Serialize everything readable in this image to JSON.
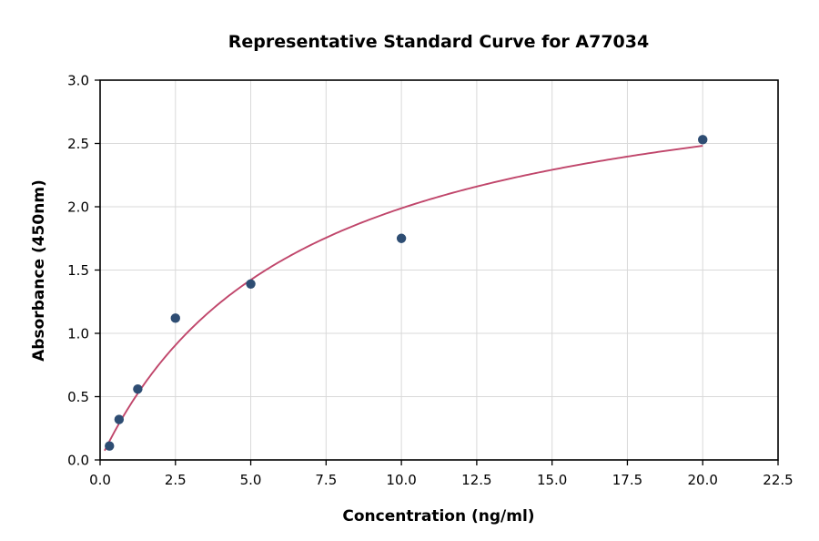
{
  "chart_data": {
    "type": "scatter",
    "title": "Representative Standard Curve for A77034",
    "xlabel": "Concentration (ng/ml)",
    "ylabel": "Absorbance (450nm)",
    "xlim": [
      0,
      22.5
    ],
    "ylim": [
      0,
      3.0
    ],
    "x_ticks": [
      0,
      2.5,
      5,
      7.5,
      10,
      12.5,
      15,
      17.5,
      20,
      22.5
    ],
    "y_ticks": [
      0,
      0.5,
      1,
      1.5,
      2,
      2.5,
      3
    ],
    "grid": true,
    "legend": "none",
    "points": [
      {
        "x": 0.31,
        "y": 0.11
      },
      {
        "x": 0.63,
        "y": 0.32
      },
      {
        "x": 1.25,
        "y": 0.56
      },
      {
        "x": 2.5,
        "y": 1.12
      },
      {
        "x": 5,
        "y": 1.39
      },
      {
        "x": 10,
        "y": 1.75
      },
      {
        "x": 20,
        "y": 2.53
      }
    ],
    "fit": {
      "model": "michaelis_menten",
      "formula": "y = a*x/(b+x)",
      "a": 3.3,
      "b": 6.6,
      "x_start": 0.15,
      "x_end": 20
    },
    "colors": {
      "point": "#2e4d73",
      "curve": "#c0466b",
      "grid": "#d9d9d9",
      "axis": "#000000",
      "background": "#ffffff"
    }
  }
}
